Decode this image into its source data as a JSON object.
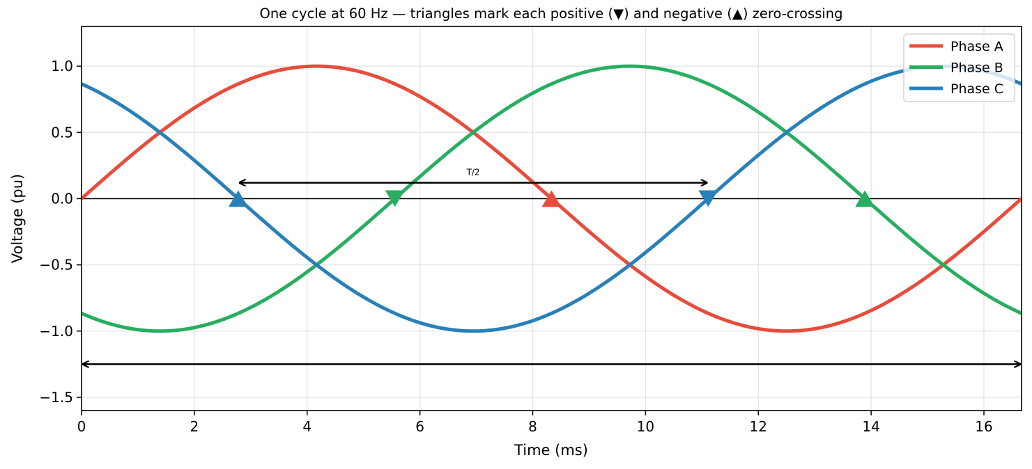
{
  "chart_data": {
    "type": "line",
    "title": "One cycle at 60 Hz — triangles mark each positive (▼) and negative (▲) zero-crossing",
    "xlabel": "Time (ms)",
    "ylabel": "Voltage (pu)",
    "xlim": [
      0,
      16.667
    ],
    "ylim": [
      -1.6,
      1.3
    ],
    "xticks": [
      0,
      2,
      4,
      6,
      8,
      10,
      12,
      14,
      16
    ],
    "yticks": [
      -1.5,
      -1.0,
      -0.5,
      0.0,
      0.5,
      1.0
    ],
    "ytick_labels": [
      "−1.5",
      "−1.0",
      "−0.5",
      "0.0",
      "0.5",
      "1.0"
    ],
    "grid": true,
    "legend_position": "top-right",
    "frequency_hz": 60,
    "series": [
      {
        "name": "Phase A",
        "color": "#e74c3c",
        "amplitude": 1.0,
        "phase_deg": 0
      },
      {
        "name": "Phase B",
        "color": "#27ae60",
        "amplitude": 1.0,
        "phase_deg": -120
      },
      {
        "name": "Phase C",
        "color": "#2980b9",
        "amplitude": 1.0,
        "phase_deg": 120
      }
    ],
    "zero_crossing_markers": [
      {
        "series": "Phase C",
        "x": 2.778,
        "direction": "negative",
        "marker": "▲"
      },
      {
        "series": "Phase B",
        "x": 5.556,
        "direction": "positive",
        "marker": "▼"
      },
      {
        "series": "Phase A",
        "x": 8.333,
        "direction": "negative",
        "marker": "▲"
      },
      {
        "series": "Phase C",
        "x": 11.111,
        "direction": "positive",
        "marker": "▼"
      },
      {
        "series": "Phase B",
        "x": 13.889,
        "direction": "negative",
        "marker": "▲"
      }
    ],
    "annotations": [
      {
        "type": "double-arrow",
        "label": "T/2",
        "x_start": 2.778,
        "x_end": 11.111,
        "y": 0.12
      },
      {
        "type": "double-arrow",
        "label": "",
        "x_start": 0,
        "x_end": 16.667,
        "y": -1.25
      }
    ]
  }
}
